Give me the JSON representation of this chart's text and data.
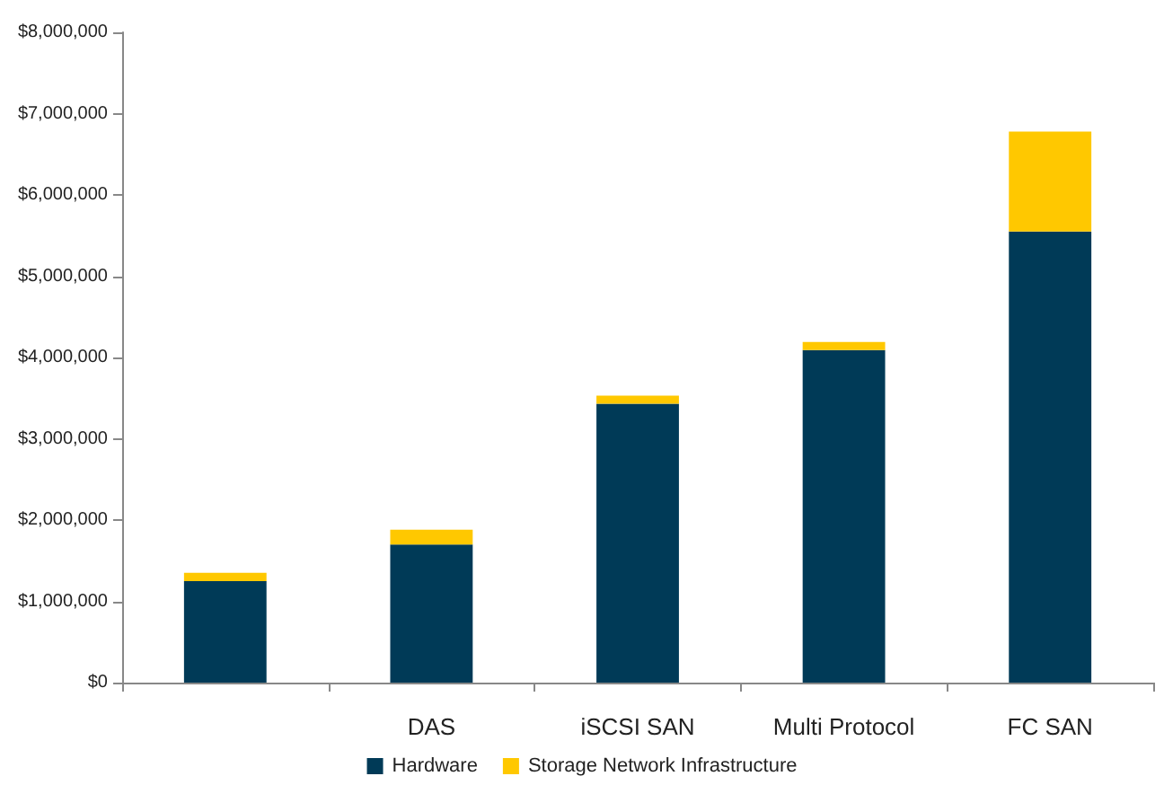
{
  "chart_data": {
    "type": "bar",
    "stacked": true,
    "categories": [
      null,
      "DAS",
      "iSCSI SAN",
      "Multi Protocol",
      "FC SAN"
    ],
    "series": [
      {
        "name": "Hardware",
        "color": "#003a57",
        "values": [
          1250000,
          1700000,
          3430000,
          4090000,
          5550000
        ]
      },
      {
        "name": "Storage Network Infrastructure",
        "color": "#ffc800",
        "values": [
          100000,
          180000,
          100000,
          100000,
          1230000
        ]
      }
    ],
    "ylim": [
      0,
      8000000
    ],
    "yticks": [
      {
        "value": 0,
        "label": "$0"
      },
      {
        "value": 1000000,
        "label": "$1,000,000"
      },
      {
        "value": 2000000,
        "label": "$2,000,000"
      },
      {
        "value": 3000000,
        "label": "$3,000,000"
      },
      {
        "value": 4000000,
        "label": "$4,000,000"
      },
      {
        "value": 5000000,
        "label": "$5,000,000"
      },
      {
        "value": 6000000,
        "label": "$6,000,000"
      },
      {
        "value": 7000000,
        "label": "$7,000,000"
      },
      {
        "value": 8000000,
        "label": "$8,000,000"
      }
    ],
    "grid": false,
    "legend": "bottom"
  }
}
